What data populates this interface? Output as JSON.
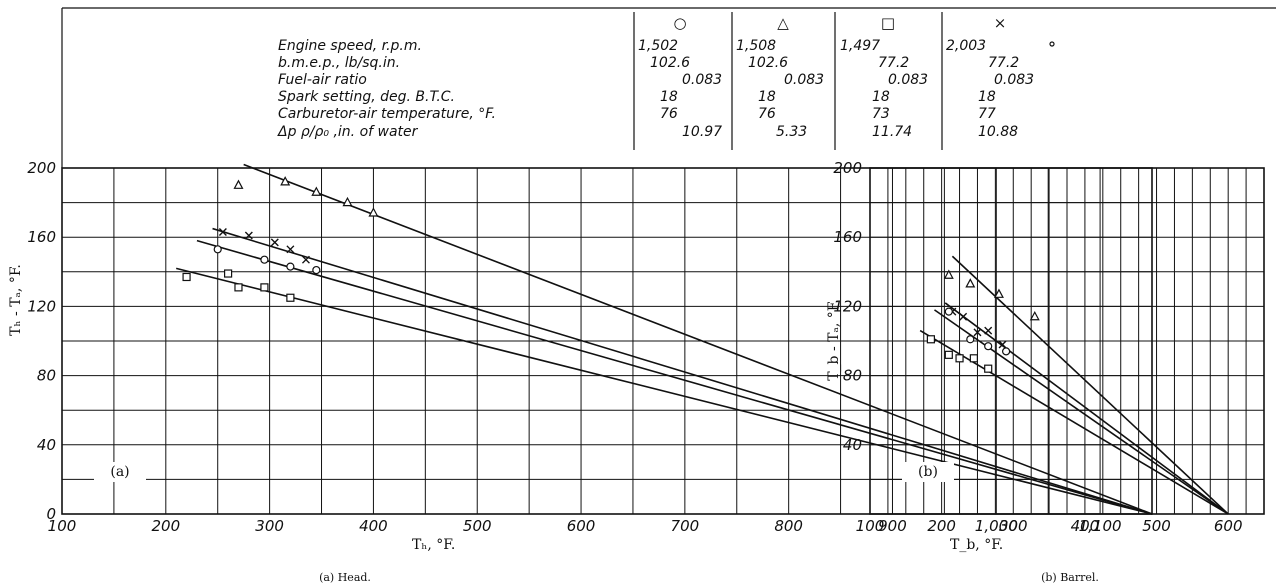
{
  "legend_table": {
    "symbols": [
      "○",
      "△",
      "□",
      "×"
    ],
    "rows": [
      {
        "label": "Engine speed, r.p.m.",
        "values": [
          "1,502",
          "1,508",
          "1,497",
          "2,003"
        ]
      },
      {
        "label": "b.m.e.p., lb/sq.in.",
        "values": [
          "102.6",
          "102.6",
          "77.2",
          "77.2"
        ]
      },
      {
        "label": "Fuel-air ratio",
        "values": [
          "0.083",
          "0.083",
          "0.083",
          "0.083"
        ]
      },
      {
        "label": "Spark setting, deg. B.T.C.",
        "values": [
          "18",
          "18",
          "18",
          "18"
        ]
      },
      {
        "label": "Carburetor-air temperature, °F.",
        "values": [
          "76",
          "76",
          "73",
          "77"
        ]
      },
      {
        "label": "Δp ρ/ρ₀ ,in. of water",
        "values": [
          "10.97",
          "5.33",
          "11.74",
          "10.88"
        ]
      }
    ]
  },
  "chart_data": [
    {
      "type": "scatter",
      "panel_tag": "(a)",
      "caption": "(a) Head.",
      "xlabel": "Tₕ, °F.",
      "ylabel": "Tₕ - Tₐ, °F.",
      "xlim": [
        100,
        1150
      ],
      "ylim": [
        0,
        200
      ],
      "xticks": [
        100,
        200,
        300,
        400,
        500,
        600,
        700,
        800,
        900,
        1000,
        1100
      ],
      "xtick_labels": [
        "100",
        "200",
        "300",
        "400",
        "500",
        "600",
        "700",
        "800",
        "900",
        "1,000",
        "1,100"
      ],
      "yticks": [
        0,
        40,
        80,
        120,
        160,
        200
      ],
      "ytick_labels": [
        "0",
        "40",
        "80",
        "120",
        "160",
        "200"
      ],
      "grid": true,
      "series": [
        {
          "marker": "triangle",
          "points": [
            [
              270,
              190
            ],
            [
              315,
              192
            ],
            [
              345,
              186
            ],
            [
              375,
              180
            ],
            [
              400,
              174
            ]
          ],
          "line": [
            [
              275,
              202
            ],
            [
              1150,
              0
            ]
          ]
        },
        {
          "marker": "x",
          "points": [
            [
              255,
              163
            ],
            [
              280,
              161
            ],
            [
              305,
              157
            ],
            [
              320,
              153
            ],
            [
              335,
              147
            ]
          ],
          "line": [
            [
              245,
              165
            ],
            [
              1150,
              0
            ]
          ]
        },
        {
          "marker": "circle",
          "points": [
            [
              250,
              153
            ],
            [
              295,
              147
            ],
            [
              320,
              143
            ],
            [
              345,
              141
            ]
          ],
          "line": [
            [
              230,
              158
            ],
            [
              1150,
              0
            ]
          ]
        },
        {
          "marker": "square",
          "points": [
            [
              220,
              137
            ],
            [
              260,
              139
            ],
            [
              270,
              131
            ],
            [
              295,
              131
            ],
            [
              320,
              125
            ]
          ],
          "line": [
            [
              210,
              142
            ],
            [
              1150,
              0
            ]
          ]
        }
      ]
    },
    {
      "type": "scatter",
      "panel_tag": "(b)",
      "caption": "(b) Barrel.",
      "xlabel": "T_b, °F.",
      "ylabel": "T_b - Tₐ, °F.",
      "xlim": [
        100,
        650
      ],
      "ylim": [
        0,
        200
      ],
      "xticks": [
        100,
        200,
        300,
        400,
        500,
        600
      ],
      "xtick_labels": [
        "100",
        "200",
        "300",
        "400",
        "500",
        "600"
      ],
      "yticks": [
        40,
        80,
        120,
        160,
        200
      ],
      "ytick_labels": [
        "40",
        "80",
        "120",
        "160",
        "200"
      ],
      "grid": true,
      "series": [
        {
          "marker": "triangle",
          "points": [
            [
              210,
              138
            ],
            [
              240,
              133
            ],
            [
              280,
              127
            ],
            [
              330,
              114
            ]
          ],
          "line": [
            [
              215,
              149
            ],
            [
              600,
              0
            ]
          ]
        },
        {
          "marker": "x",
          "points": [
            [
              215,
              117
            ],
            [
              230,
              114
            ],
            [
              250,
              105
            ],
            [
              265,
              106
            ],
            [
              285,
              98
            ]
          ],
          "line": [
            [
              205,
              122
            ],
            [
              600,
              0
            ]
          ]
        },
        {
          "marker": "circle",
          "points": [
            [
              210,
              117
            ],
            [
              240,
              101
            ],
            [
              265,
              97
            ],
            [
              290,
              94
            ]
          ],
          "line": [
            [
              190,
              118
            ],
            [
              600,
              0
            ]
          ]
        },
        {
          "marker": "square",
          "points": [
            [
              185,
              101
            ],
            [
              210,
              92
            ],
            [
              225,
              90
            ],
            [
              245,
              90
            ],
            [
              265,
              84
            ]
          ],
          "line": [
            [
              170,
              106
            ],
            [
              600,
              0
            ]
          ]
        }
      ]
    }
  ]
}
